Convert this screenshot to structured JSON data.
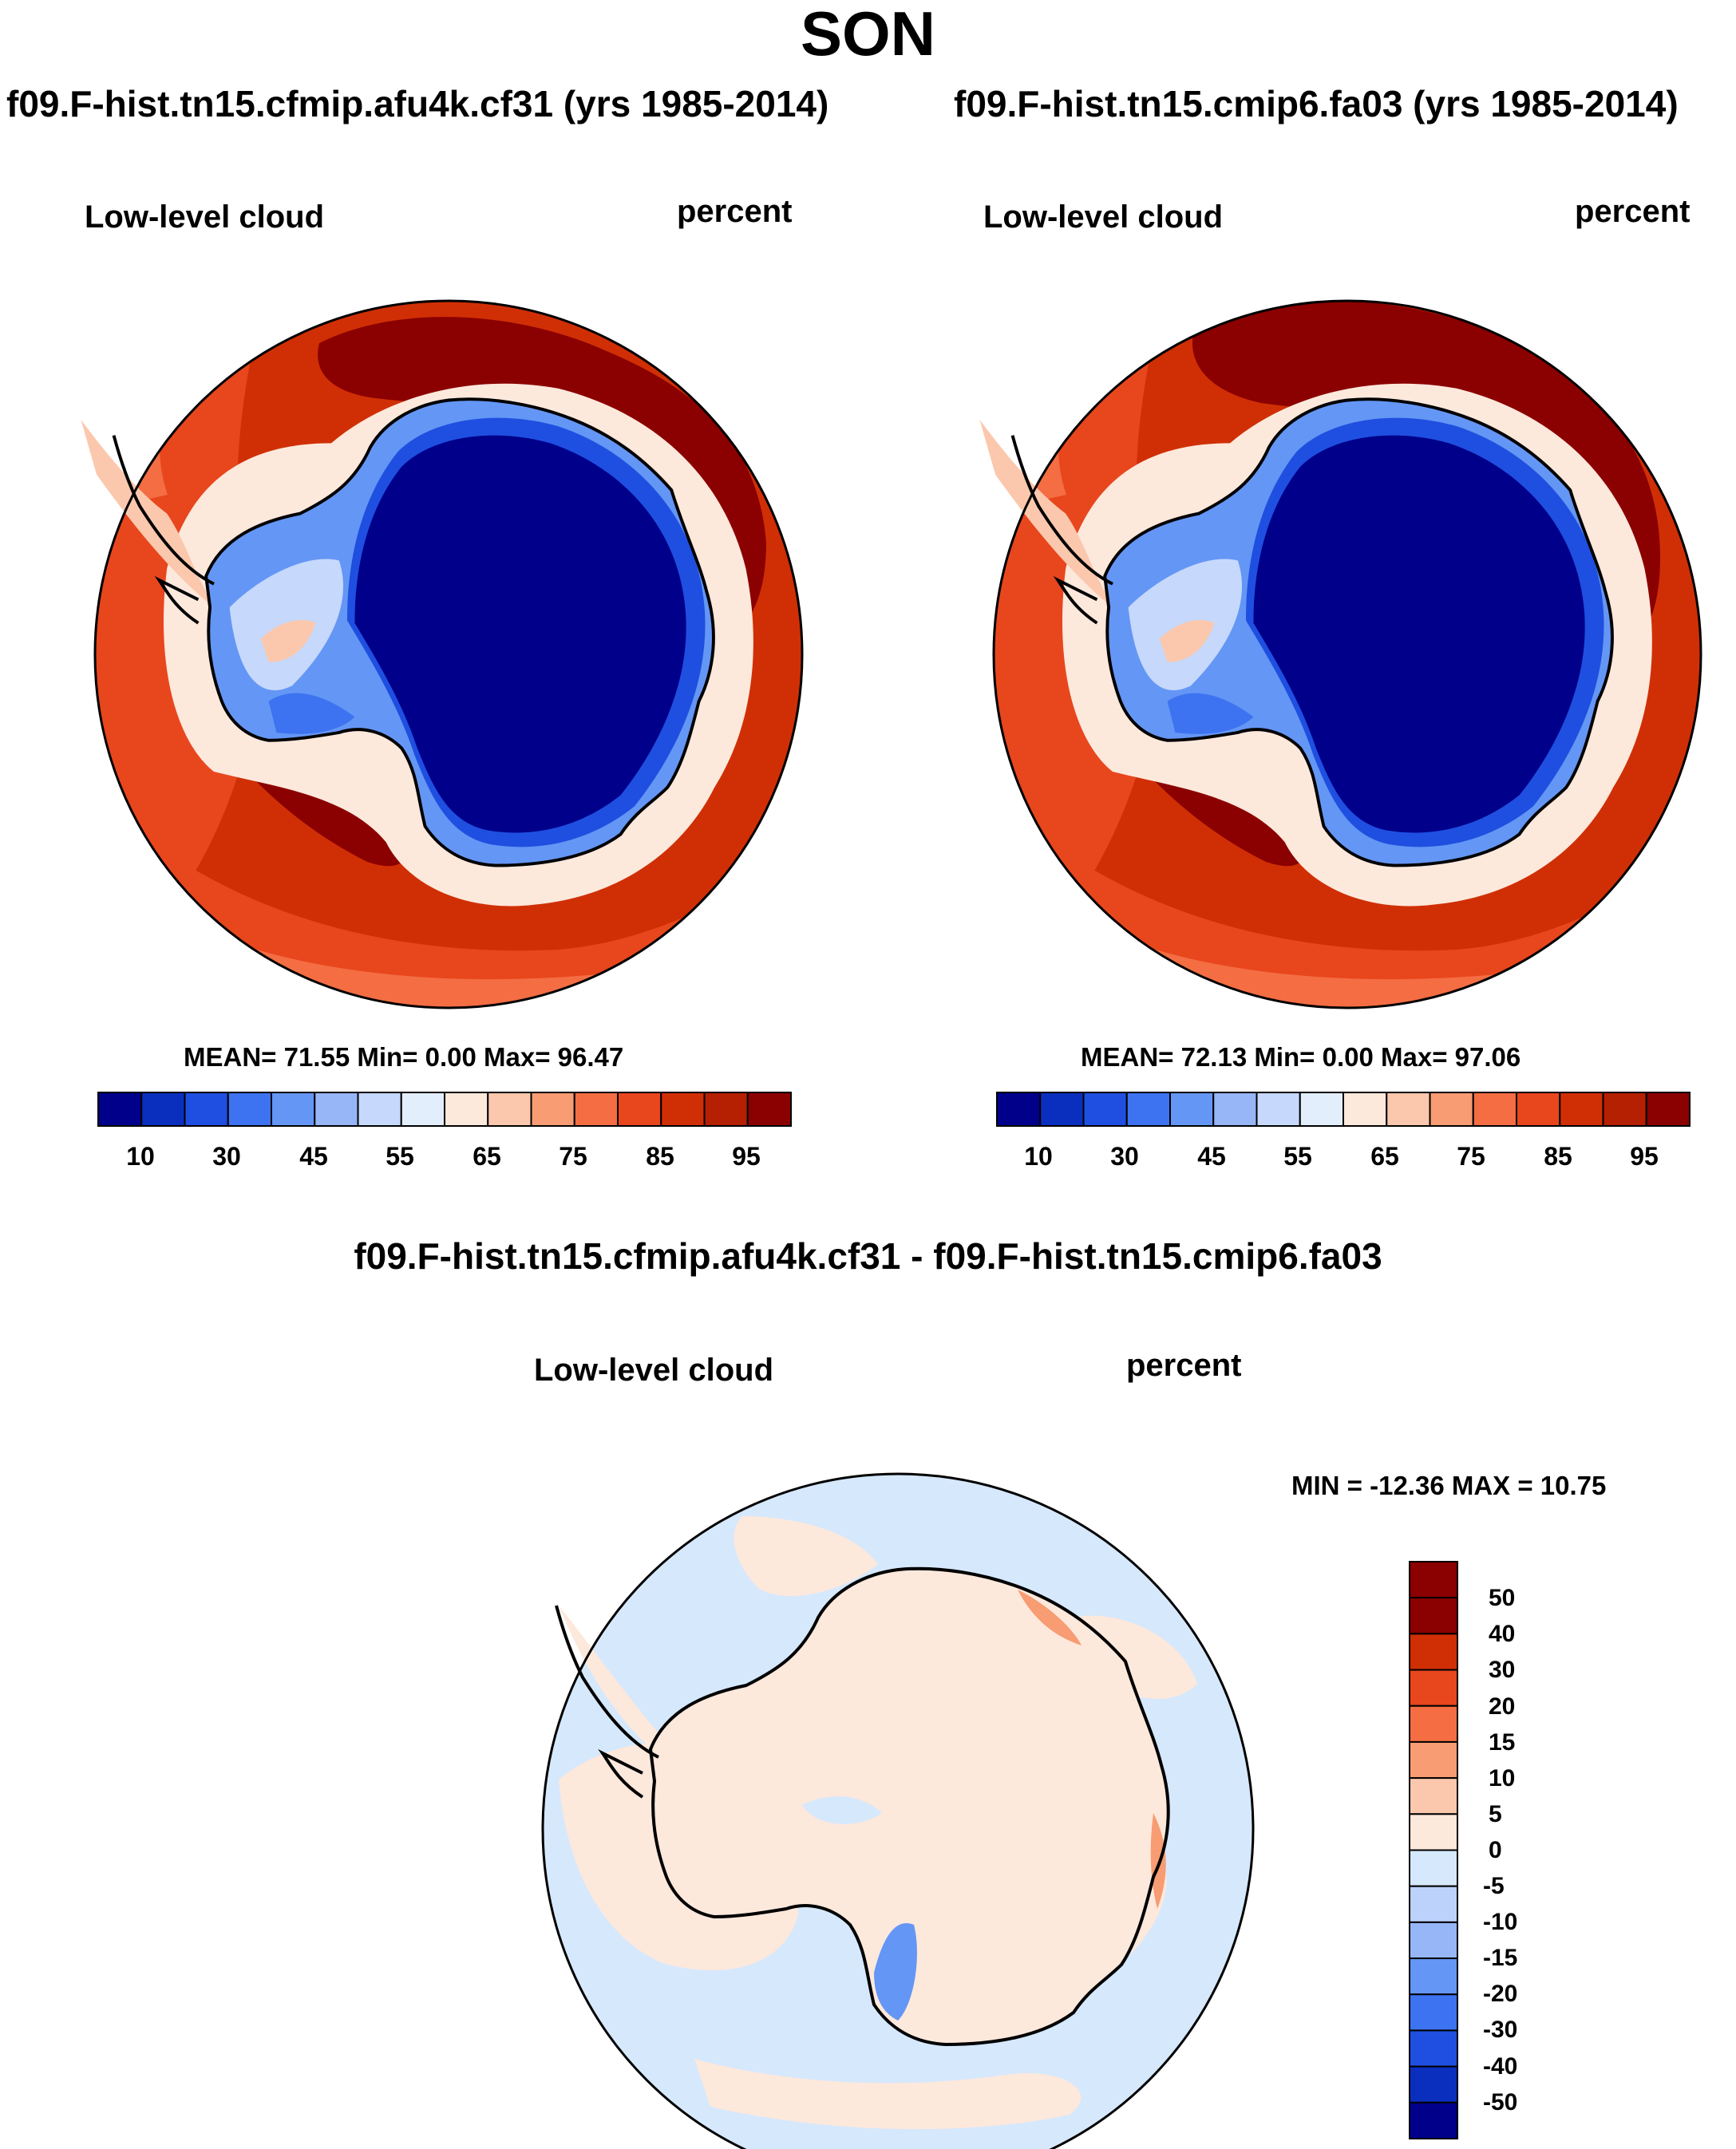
{
  "figure": {
    "title": "SON",
    "diff_title": "f09.F-hist.tn15.cfmip.afu4k.cf31 - f09.F-hist.tn15.cmip6.fa03"
  },
  "colors": {
    "abs_scale": [
      "#00008b",
      "#0a2fbf",
      "#1f4fe0",
      "#3d73f0",
      "#6496f5",
      "#96b6f8",
      "#c6d8fb",
      "#e3eefc",
      "#fde8dc",
      "#fbc8ad",
      "#f79c73",
      "#f46d43",
      "#e8461d",
      "#d02f05",
      "#b51f02",
      "#8b0000"
    ],
    "diff_scale": [
      "#00008b",
      "#0a2fbf",
      "#1f4fe0",
      "#3d73f0",
      "#6496f5",
      "#96b6f8",
      "#bcd2fb",
      "#d6e8fc",
      "#fde8dc",
      "#fbc8ad",
      "#f79c73",
      "#f46d43",
      "#e8461d",
      "#d02f05",
      "#8b0000"
    ],
    "coastline": "#000000"
  },
  "panels": [
    {
      "case": "f09.F-hist.tn15.cfmip.afu4k.cf31 (yrs 1985-2014)",
      "variable": "Low-level cloud",
      "units": "percent",
      "stats": "MEAN=  71.55  Min=    0.00  Max=  96.47",
      "colorbar_ticks": [
        "10",
        "30",
        "45",
        "55",
        "65",
        "75",
        "85",
        "95"
      ]
    },
    {
      "case": "f09.F-hist.tn15.cmip6.fa03 (yrs 1985-2014)",
      "variable": "Low-level cloud",
      "units": "percent",
      "stats": "MEAN=  72.13  Min=    0.00  Max=  97.06",
      "colorbar_ticks": [
        "10",
        "30",
        "45",
        "55",
        "65",
        "75",
        "85",
        "95"
      ]
    }
  ],
  "difference": {
    "variable": "Low-level cloud",
    "units": "percent",
    "stats": "MIN = -12.36 MAX =  10.75",
    "colorbar_ticks": [
      "50",
      "40",
      "30",
      "20",
      "15",
      "10",
      "5",
      "0",
      "-5",
      "-10",
      "-15",
      "-20",
      "-30",
      "-40",
      "-50"
    ]
  }
}
